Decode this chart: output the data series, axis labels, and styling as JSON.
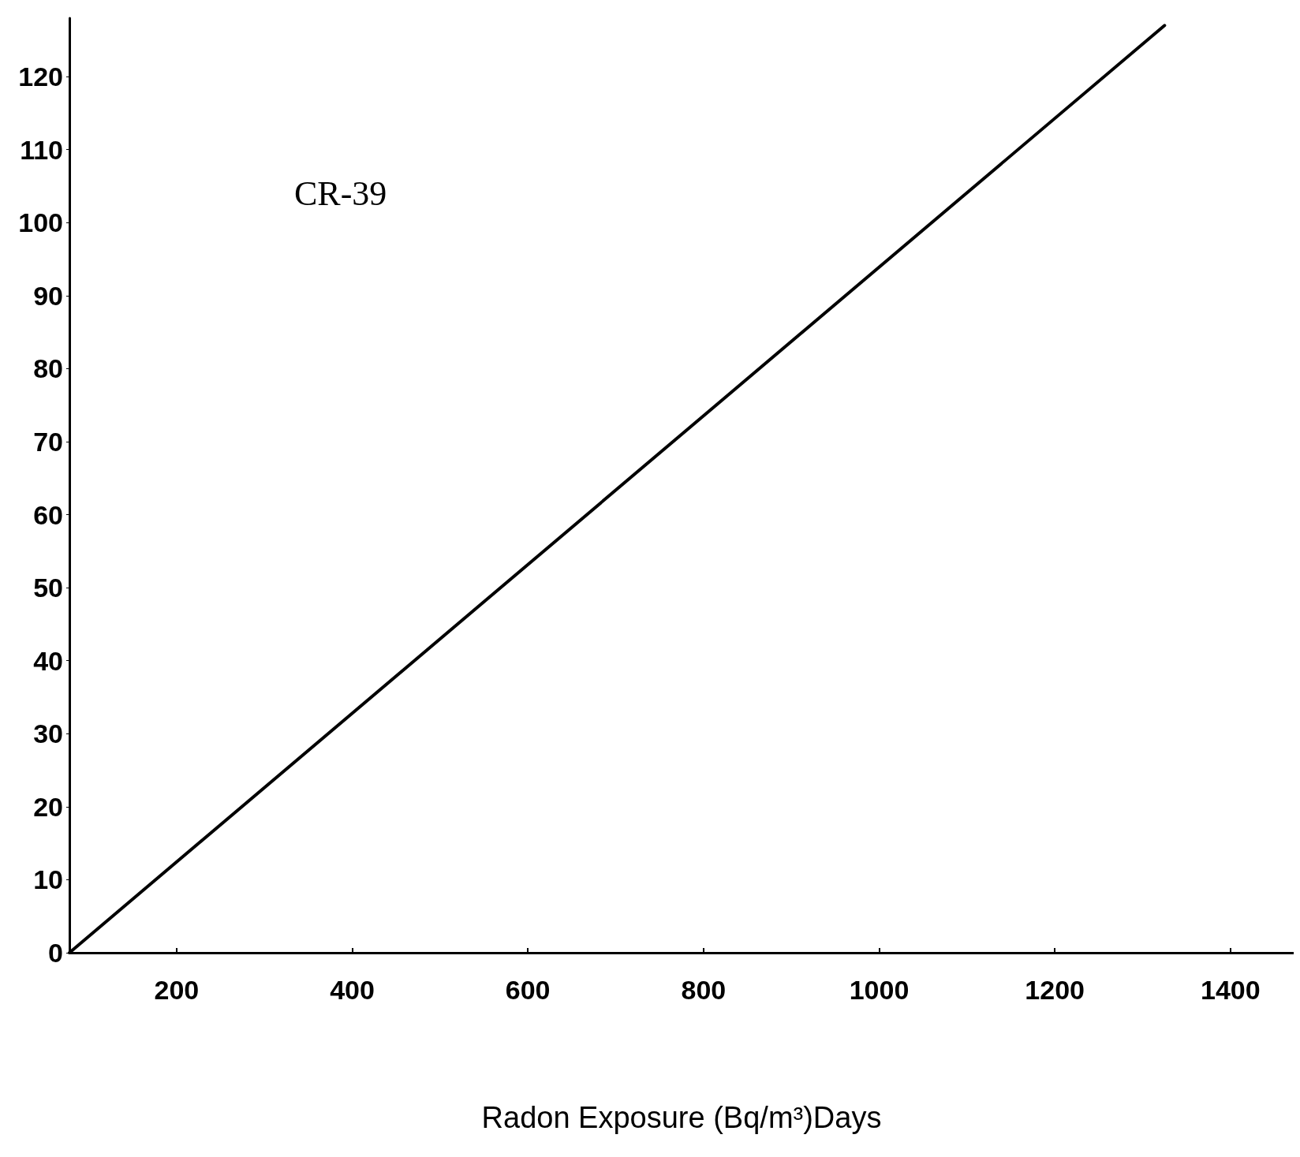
{
  "chart_data": {
    "type": "line",
    "xlabel": "Radon Exposure (Bq/m³)Days",
    "annotations": [
      "CR-39"
    ],
    "x": [
      78,
      1325
    ],
    "series": [
      {
        "color": "#000000",
        "values": [
          0,
          127
        ]
      }
    ],
    "xlim": [
      78,
      1472
    ],
    "xticks": [
      200,
      400,
      600,
      800,
      1000,
      1200,
      1400
    ],
    "ylim": [
      0,
      128
    ],
    "yticks": [
      0,
      10,
      20,
      30,
      40,
      50,
      60,
      70,
      80,
      90,
      100,
      110,
      120
    ],
    "grid": false,
    "marker": "none",
    "line_style": "solid"
  }
}
